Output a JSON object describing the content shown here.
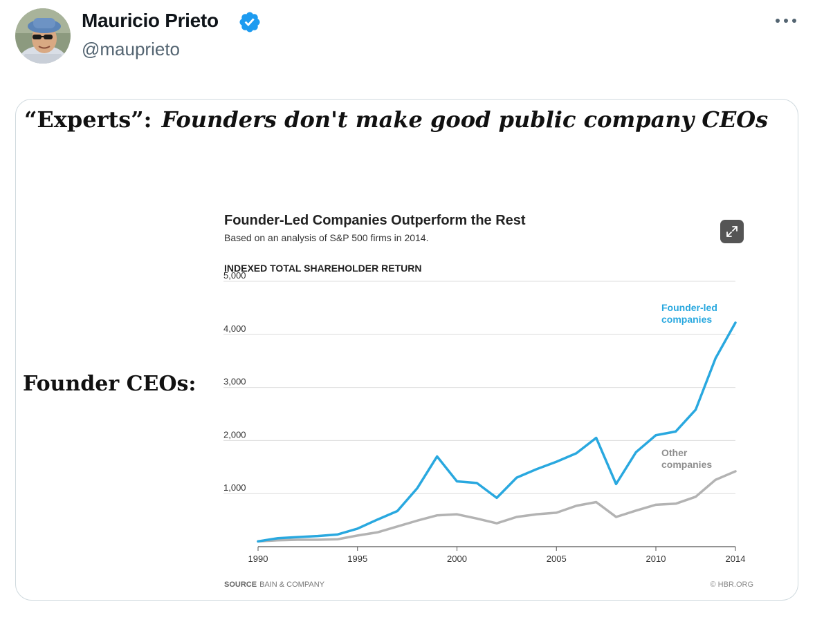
{
  "author": {
    "name": "Mauricio Prieto",
    "handle": "@mauprieto",
    "verified": true,
    "avatar_icon": "avatar-photo",
    "more_icon": "more-options-icon"
  },
  "image": {
    "headline_lead": "“Experts”:",
    "headline_quote": "Founders don't make good public company CEOs",
    "side_label": "Founder CEOs:",
    "expand_icon": "expand-icon",
    "source_label": "SOURCE",
    "source_value": "BAIN & COMPANY",
    "credit": "© HBR.ORG"
  },
  "colors": {
    "founder_series": "#29a8df",
    "other_series": "#b3b3b3",
    "verified_badge": "#1d9bf0"
  },
  "chart_data": {
    "type": "line",
    "title": "Founder-Led Companies Outperform the Rest",
    "subtitle": "Based on an analysis of S&P 500 firms in 2014.",
    "ylabel": "INDEXED TOTAL SHAREHOLDER RETURN",
    "xlabel": "",
    "ylim": [
      0,
      5000
    ],
    "yticks": [
      1000,
      2000,
      3000,
      4000,
      5000
    ],
    "ytick_labels": [
      "1,000",
      "2,000",
      "3,000",
      "4,000",
      "5,000"
    ],
    "xlim": [
      1990,
      2014
    ],
    "xticks": [
      1990,
      1995,
      2000,
      2005,
      2010,
      2014
    ],
    "grid": true,
    "x": [
      1990,
      1991,
      1992,
      1993,
      1994,
      1995,
      1996,
      1997,
      1998,
      1999,
      2000,
      2001,
      2002,
      2003,
      2004,
      2005,
      2006,
      2007,
      2008,
      2009,
      2010,
      2011,
      2012,
      2013,
      2014
    ],
    "series": [
      {
        "name": "Founder-led companies",
        "label_lines": [
          "Founder-led",
          "companies"
        ],
        "values": [
          100,
          160,
          180,
          200,
          230,
          340,
          510,
          670,
          1100,
          1700,
          1230,
          1200,
          920,
          1300,
          1460,
          1600,
          1760,
          2050,
          1180,
          1780,
          2100,
          2170,
          2580,
          3550,
          4220
        ]
      },
      {
        "name": "Other companies",
        "label_lines": [
          "Other",
          "companies"
        ],
        "values": [
          100,
          120,
          130,
          130,
          140,
          210,
          270,
          380,
          490,
          590,
          610,
          530,
          440,
          560,
          610,
          640,
          770,
          840,
          560,
          680,
          790,
          810,
          940,
          1260,
          1420
        ]
      }
    ]
  }
}
